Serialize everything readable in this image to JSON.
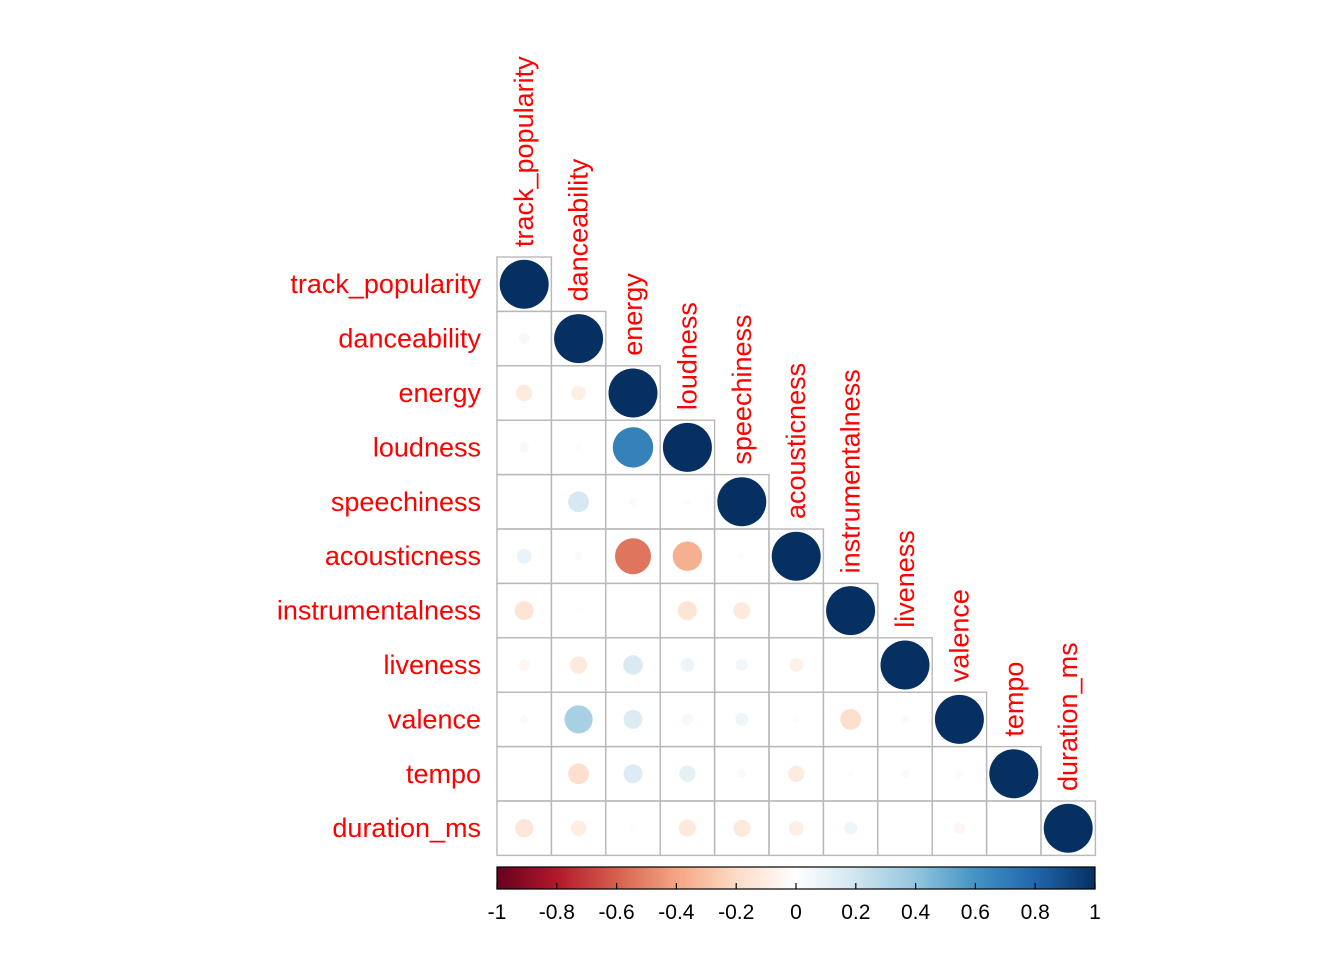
{
  "chart_data": {
    "type": "heatmap",
    "variant": "correlation-lower-triangle-circles",
    "variables": [
      "track_popularity",
      "danceability",
      "energy",
      "loudness",
      "speechiness",
      "acousticness",
      "instrumentalness",
      "liveness",
      "valence",
      "tempo",
      "duration_ms"
    ],
    "matrix": [
      [
        1.0,
        0.05,
        -0.11,
        0.04,
        0.01,
        0.09,
        -0.15,
        -0.05,
        0.03,
        0.0,
        -0.14
      ],
      [
        0.05,
        1.0,
        -0.09,
        0.02,
        0.18,
        -0.03,
        -0.01,
        -0.12,
        0.33,
        -0.18,
        -0.1
      ],
      [
        -0.11,
        -0.09,
        1.0,
        0.68,
        -0.03,
        -0.54,
        0.01,
        0.16,
        0.15,
        0.15,
        -0.02
      ],
      [
        0.04,
        0.02,
        0.68,
        1.0,
        0.02,
        -0.36,
        -0.15,
        0.08,
        0.05,
        0.11,
        -0.12
      ],
      [
        0.01,
        0.18,
        -0.03,
        0.02,
        1.0,
        0.02,
        -0.12,
        0.06,
        0.07,
        0.03,
        -0.12
      ],
      [
        0.09,
        -0.03,
        -0.54,
        -0.36,
        0.02,
        1.0,
        0.0,
        -0.08,
        0.02,
        -0.11,
        -0.09
      ],
      [
        -0.15,
        -0.01,
        0.01,
        -0.15,
        -0.12,
        0.0,
        1.0,
        0.01,
        -0.18,
        0.02,
        0.07
      ],
      [
        -0.05,
        -0.12,
        0.16,
        0.08,
        0.06,
        -0.08,
        0.01,
        1.0,
        0.03,
        0.03,
        0.01
      ],
      [
        0.03,
        0.33,
        0.15,
        0.05,
        0.07,
        0.02,
        -0.18,
        0.03,
        1.0,
        -0.03,
        -0.05
      ],
      [
        0.0,
        -0.18,
        0.15,
        0.11,
        0.03,
        -0.11,
        0.02,
        0.03,
        -0.03,
        1.0,
        0.0
      ],
      [
        -0.14,
        -0.1,
        -0.02,
        -0.12,
        -0.12,
        -0.09,
        0.07,
        0.01,
        -0.05,
        0.0,
        1.0
      ]
    ],
    "colorbar": {
      "ticks": [
        "-1",
        "-0.8",
        "-0.6",
        "-0.4",
        "-0.2",
        "0",
        "0.2",
        "0.4",
        "0.6",
        "0.8",
        "1"
      ],
      "range": [
        -1,
        1
      ],
      "palette": [
        "#67001f",
        "#b2182b",
        "#d6604d",
        "#f4a582",
        "#fddbc7",
        "#ffffff",
        "#d1e5f0",
        "#92c5de",
        "#4393c3",
        "#2166ac",
        "#053061"
      ]
    },
    "label_color": "#ff0000",
    "grid_color": "#b8b8b8",
    "title": "",
    "xlabel": "",
    "ylabel": ""
  }
}
